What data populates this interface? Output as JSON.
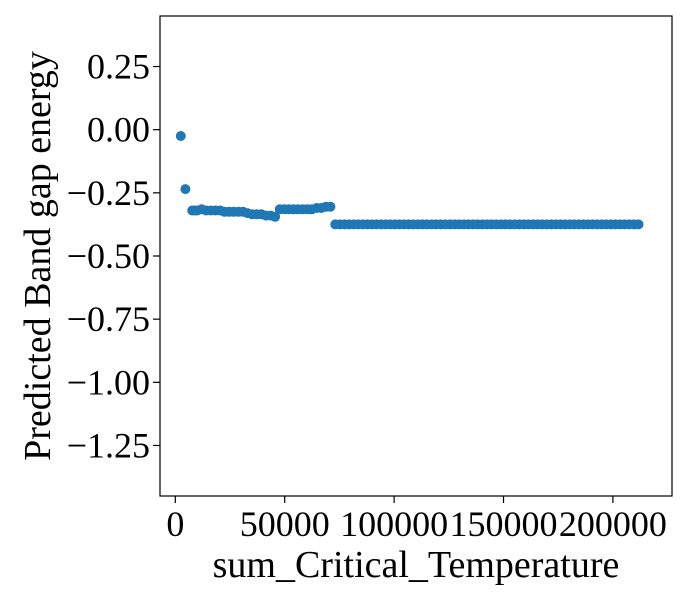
{
  "chart_data": {
    "type": "scatter",
    "title": "",
    "xlabel": "sum_Critical_Temperature",
    "ylabel": "Predicted Band gap energy",
    "xlim": [
      -7000,
      227000
    ],
    "ylim": [
      -1.45,
      0.45
    ],
    "xticks": [
      0,
      50000,
      100000,
      150000,
      200000
    ],
    "xtick_labels": [
      "0",
      "50000",
      "100000",
      "150000",
      "200000"
    ],
    "yticks": [
      0.25,
      0.0,
      -0.25,
      -0.5,
      -0.75,
      -1.0,
      -1.25
    ],
    "ytick_labels": [
      "0.25",
      "0.00",
      "−0.25",
      "−0.50",
      "−0.75",
      "−1.00",
      "−1.25"
    ],
    "grid": false,
    "legend": "none",
    "marker_color": "#1f77b4",
    "x": [
      2500,
      4600,
      7700,
      8900,
      10000,
      12000,
      14100,
      16300,
      18400,
      20500,
      22500,
      24600,
      26700,
      28900,
      31000,
      33000,
      35100,
      37200,
      39400,
      41500,
      43600,
      45600,
      47700,
      49900,
      52000,
      54100,
      56100,
      58200,
      60400,
      62400,
      64600,
      66700,
      68800,
      70900,
      73100,
      75200,
      77300,
      79400,
      81500,
      83600,
      85700,
      87800,
      89900,
      92000,
      94100,
      96200,
      98300,
      100400,
      102500,
      104600,
      106700,
      108800,
      110900,
      113000,
      115100,
      117200,
      119300,
      121400,
      123500,
      125600,
      127700,
      129800,
      131900,
      134000,
      136100,
      138200,
      140300,
      142400,
      144500,
      146600,
      148700,
      150800,
      152900,
      155000,
      157100,
      159200,
      161300,
      163400,
      165500,
      167600,
      169700,
      171800,
      173900,
      176000,
      178100,
      180200,
      182300,
      184400,
      186500,
      188600,
      190700,
      192800,
      194900,
      197000,
      199100,
      201200,
      203300,
      205400,
      207500,
      209600,
      211700
    ],
    "y": [
      -0.025,
      -0.235,
      -0.32,
      -0.32,
      -0.32,
      -0.315,
      -0.32,
      -0.32,
      -0.32,
      -0.32,
      -0.325,
      -0.325,
      -0.325,
      -0.325,
      -0.325,
      -0.33,
      -0.335,
      -0.335,
      -0.335,
      -0.34,
      -0.34,
      -0.345,
      -0.315,
      -0.315,
      -0.315,
      -0.315,
      -0.315,
      -0.315,
      -0.315,
      -0.315,
      -0.31,
      -0.31,
      -0.305,
      -0.305,
      -0.375,
      -0.375,
      -0.375,
      -0.375,
      -0.375,
      -0.375,
      -0.375,
      -0.375,
      -0.375,
      -0.375,
      -0.375,
      -0.375,
      -0.375,
      -0.375,
      -0.375,
      -0.375,
      -0.375,
      -0.375,
      -0.375,
      -0.375,
      -0.375,
      -0.375,
      -0.375,
      -0.375,
      -0.375,
      -0.375,
      -0.375,
      -0.375,
      -0.375,
      -0.375,
      -0.375,
      -0.375,
      -0.375,
      -0.375,
      -0.375,
      -0.375,
      -0.375,
      -0.375,
      -0.375,
      -0.375,
      -0.375,
      -0.375,
      -0.375,
      -0.375,
      -0.375,
      -0.375,
      -0.375,
      -0.375,
      -0.375,
      -0.375,
      -0.375,
      -0.375,
      -0.375,
      -0.375,
      -0.375,
      -0.375,
      -0.375,
      -0.375,
      -0.375,
      -0.375,
      -0.375,
      -0.375,
      -0.375,
      -0.375,
      -0.375,
      -0.375,
      -0.375
    ]
  }
}
